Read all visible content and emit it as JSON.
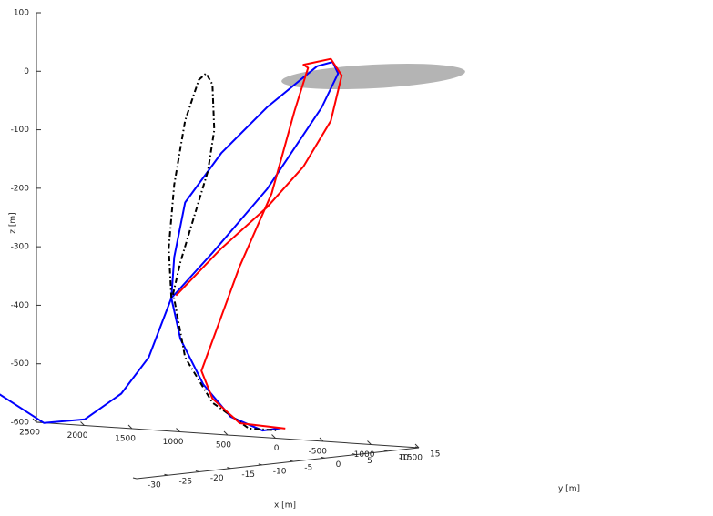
{
  "chart_data": {
    "type": "line3d",
    "xlabel": "x [m]",
    "ylabel": "y [m]",
    "zlabel": "z [m]",
    "xlim": [
      -1500,
      2500
    ],
    "ylim": [
      -30,
      15
    ],
    "zlim": [
      -600,
      100
    ],
    "xticks": [
      2500,
      2000,
      1500,
      1000,
      500,
      0,
      -500,
      -1000,
      -1500
    ],
    "yticks": [
      15,
      10,
      5,
      0,
      -5,
      -10,
      -15,
      -20,
      -25,
      -30
    ],
    "zticks": [
      100,
      0,
      -100,
      -200,
      -300,
      -400,
      -500,
      -600
    ],
    "grid": false,
    "series": [
      {
        "color": "#0000ff",
        "style": "solid",
        "x": [
          2390,
          2199,
          1913,
          1437,
          1009,
          628,
          342,
          104,
          -325,
          -896,
          -1468,
          -1639,
          -1582,
          -1420,
          -896,
          -420,
          -39,
          75,
          104,
          9,
          -230,
          -515,
          -849,
          -1039
        ],
        "y": [
          0,
          0,
          0,
          0,
          0,
          0,
          0,
          0,
          0,
          0,
          0,
          0,
          0,
          0,
          0,
          0,
          0,
          0,
          0,
          0,
          0,
          0,
          0,
          0
        ],
        "z": [
          -396,
          -468,
          -527,
          -572,
          -561,
          -513,
          -448,
          -344,
          -262,
          -147,
          -1,
          59,
          78,
          69,
          -7,
          -90,
          -179,
          -274,
          -344,
          -413,
          -488,
          -540,
          -560,
          -554
        ]
      },
      {
        "color": "#000000",
        "style": "dashdot",
        "x": [
          104,
          132,
          75,
          -39,
          -182,
          -258,
          -325,
          -344,
          -277,
          -134,
          9,
          85,
          -39,
          -325,
          -706,
          -991
        ],
        "y": [
          0,
          0,
          0,
          0,
          0,
          0,
          0,
          0,
          0,
          0,
          0,
          0,
          0,
          0,
          0,
          0
        ],
        "z": [
          -344,
          -259,
          -150,
          -39,
          32,
          44,
          26,
          -52,
          -123,
          -202,
          -281,
          -336,
          -444,
          -518,
          -558,
          -558
        ]
      },
      {
        "color": "#ff0000",
        "style": "solid",
        "x": [
          -1087,
          -610,
          -325,
          -210,
          -610,
          -944,
          -1182,
          -1325,
          -1277,
          -1563,
          -1677,
          -1563,
          -1277,
          -896,
          -420,
          56
        ],
        "y": [
          0,
          0,
          0,
          0,
          0,
          0,
          0,
          0,
          0,
          0,
          0,
          0,
          0,
          0,
          0,
          0
        ],
        "z": [
          -554,
          -550,
          -511,
          -465,
          -282,
          -154,
          -11,
          65,
          70,
          83,
          56,
          -23,
          -104,
          -178,
          -253,
          -339
        ]
      }
    ]
  }
}
